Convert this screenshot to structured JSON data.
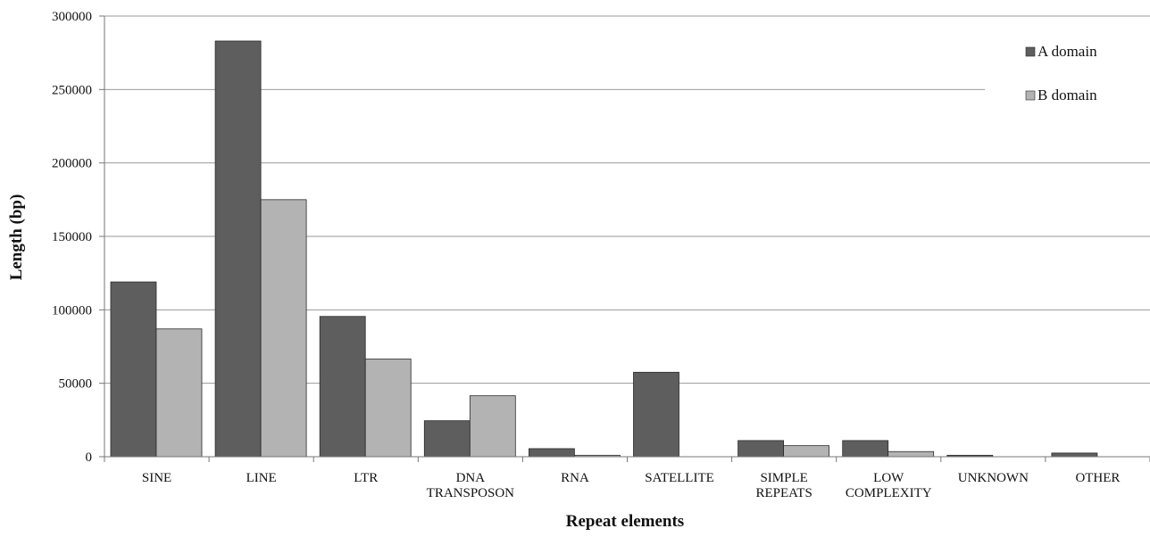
{
  "chart_data": {
    "type": "bar",
    "xlabel": "Repeat elements",
    "ylabel": "Length (bp)",
    "ylim": [
      0,
      300000
    ],
    "y_ticks": [
      0,
      50000,
      100000,
      150000,
      200000,
      250000,
      300000
    ],
    "grid": true,
    "legend_placement": "top-right",
    "categories": [
      [
        "SINE"
      ],
      [
        "LINE"
      ],
      [
        "LTR"
      ],
      [
        "DNA",
        "TRANSPOSON"
      ],
      [
        "RNA"
      ],
      [
        "SATELLITE"
      ],
      [
        "SIMPLE",
        "REPEATS"
      ],
      [
        "LOW",
        "COMPLEXITY"
      ],
      [
        "UNKNOWN"
      ],
      [
        "OTHER"
      ]
    ],
    "series": [
      {
        "name": "A domain",
        "color": "#5e5e5e",
        "values": [
          119000,
          283000,
          95500,
          24500,
          5500,
          57500,
          11000,
          11000,
          1000,
          2500
        ]
      },
      {
        "name": "B domain",
        "color": "#b3b3b3",
        "values": [
          87000,
          175000,
          66500,
          41500,
          1000,
          0,
          7500,
          3500,
          0,
          0
        ]
      }
    ]
  }
}
